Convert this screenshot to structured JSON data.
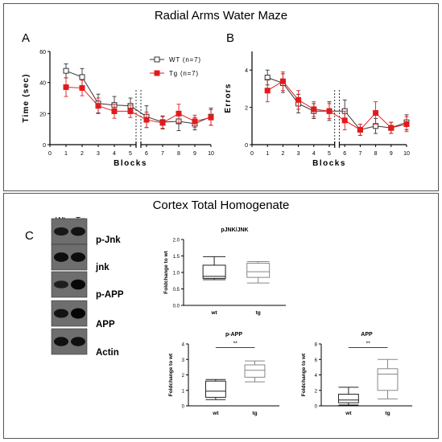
{
  "titles": {
    "top": "Radial Arms Water Maze",
    "bottom": "Cortex Total Homogenate"
  },
  "panel_letters": {
    "a": "A",
    "b": "B",
    "c": "C"
  },
  "blot": {
    "lanes": [
      "Wt",
      "Tg"
    ],
    "labels": [
      "p-Jnk",
      "jnk",
      "p-APP",
      "APP",
      "Actin"
    ],
    "band_intensity": [
      [
        0.65,
        0.75
      ],
      [
        0.85,
        0.85
      ],
      [
        0.55,
        0.95
      ],
      [
        0.75,
        1.0
      ],
      [
        0.8,
        0.8
      ]
    ]
  },
  "colors": {
    "wt": "#333333",
    "tg": "#e31a1c",
    "box_wt": "#222222",
    "box_tg": "#888888"
  },
  "chart_data": [
    {
      "id": "A",
      "type": "line",
      "title": "",
      "xlabel": "Blocks",
      "ylabel": "Time (sec)",
      "xlim": [
        0,
        10
      ],
      "ylim": [
        0,
        60
      ],
      "xticks": [
        "0",
        "1",
        "2",
        "3",
        "4",
        "5",
        "6",
        "7",
        "8",
        "9",
        "10"
      ],
      "yticks": [
        "0",
        "20",
        "40",
        "60"
      ],
      "ytick_values": [
        0,
        20,
        40,
        60
      ],
      "x": [
        1,
        2,
        3,
        4,
        5,
        6,
        7,
        8,
        9,
        10
      ],
      "legend": "top-right",
      "series": [
        {
          "name": "WT (n=7)",
          "marker": "open-square",
          "values": [
            47.5,
            43.5,
            26.5,
            25.5,
            25.0,
            18.0,
            14.5,
            15.0,
            13.5,
            18.0
          ],
          "errors": [
            4.5,
            5.5,
            6.0,
            5.5,
            5.0,
            7.0,
            4.0,
            6.0,
            4.0,
            5.5
          ]
        },
        {
          "name": "Tg (n=7)",
          "marker": "filled-square",
          "values": [
            37.0,
            36.5,
            25.0,
            21.5,
            21.5,
            16.0,
            14.0,
            20.0,
            15.0,
            17.5
          ],
          "errors": [
            6.0,
            5.0,
            5.0,
            4.5,
            4.0,
            5.0,
            4.0,
            6.0,
            4.0,
            5.0
          ]
        }
      ]
    },
    {
      "id": "B",
      "type": "line",
      "title": "",
      "xlabel": "Blocks",
      "ylabel": "Errors",
      "xlim": [
        0,
        10
      ],
      "ylim": [
        0,
        5
      ],
      "xticks": [
        "0",
        "1",
        "2",
        "3",
        "4",
        "5",
        "6",
        "7",
        "8",
        "9",
        "10"
      ],
      "yticks": [
        "0",
        "2",
        "4"
      ],
      "ytick_values": [
        0,
        2,
        4
      ],
      "x": [
        1,
        2,
        3,
        4,
        5,
        6,
        7,
        8,
        9,
        10
      ],
      "series": [
        {
          "name": "WT (n=7)",
          "marker": "open-square",
          "values": [
            3.6,
            3.3,
            2.2,
            1.8,
            1.8,
            1.8,
            0.8,
            1.0,
            0.9,
            1.2
          ],
          "errors": [
            0.4,
            0.5,
            0.5,
            0.4,
            0.5,
            0.6,
            0.3,
            0.4,
            0.3,
            0.4
          ]
        },
        {
          "name": "Tg (n=7)",
          "marker": "filled-square",
          "values": [
            2.9,
            3.4,
            2.4,
            1.9,
            1.8,
            1.3,
            0.8,
            1.7,
            0.9,
            1.1
          ],
          "errors": [
            0.6,
            0.5,
            0.5,
            0.4,
            0.4,
            0.5,
            0.3,
            0.6,
            0.3,
            0.4
          ]
        }
      ]
    },
    {
      "id": "pJNK",
      "type": "box",
      "title": "pJNK/JNK",
      "xlabel": "",
      "ylabel": "Foldchange to wt",
      "ylim": [
        0,
        2
      ],
      "yticks": [
        "0.0",
        "0.5",
        "1.0",
        "1.5",
        "2.0"
      ],
      "ytick_values": [
        0,
        0.5,
        1,
        1.5,
        2
      ],
      "categories": [
        "wt",
        "tg"
      ],
      "boxes": [
        {
          "min": 0.78,
          "q1": 0.82,
          "median": 0.88,
          "q3": 1.22,
          "max": 1.48
        },
        {
          "min": 0.68,
          "q1": 0.85,
          "median": 1.02,
          "q3": 1.28,
          "max": 1.33
        }
      ],
      "significance": ""
    },
    {
      "id": "pAPP",
      "type": "box",
      "title": "p-APP",
      "xlabel": "",
      "ylabel": "Foldchange to wt",
      "ylim": [
        0,
        4
      ],
      "yticks": [
        "0",
        "1",
        "2",
        "3",
        "4"
      ],
      "ytick_values": [
        0,
        1,
        2,
        3,
        4
      ],
      "categories": [
        "wt",
        "tg"
      ],
      "boxes": [
        {
          "min": 0.4,
          "q1": 0.55,
          "median": 0.95,
          "q3": 1.6,
          "max": 1.7
        },
        {
          "min": 1.55,
          "q1": 1.85,
          "median": 2.3,
          "q3": 2.65,
          "max": 2.9
        }
      ],
      "significance": "**"
    },
    {
      "id": "APP",
      "type": "box",
      "title": "APP",
      "xlabel": "",
      "ylabel": "Foldchange to wt",
      "ylim": [
        0,
        8
      ],
      "yticks": [
        "0",
        "2",
        "4",
        "6",
        "8"
      ],
      "ytick_values": [
        0,
        2,
        4,
        6,
        8
      ],
      "categories": [
        "wt",
        "tg"
      ],
      "boxes": [
        {
          "min": 0.1,
          "q1": 0.4,
          "median": 0.75,
          "q3": 1.5,
          "max": 2.4
        },
        {
          "min": 0.9,
          "q1": 2.0,
          "median": 4.1,
          "q3": 4.8,
          "max": 6.0
        }
      ],
      "significance": "**"
    }
  ]
}
